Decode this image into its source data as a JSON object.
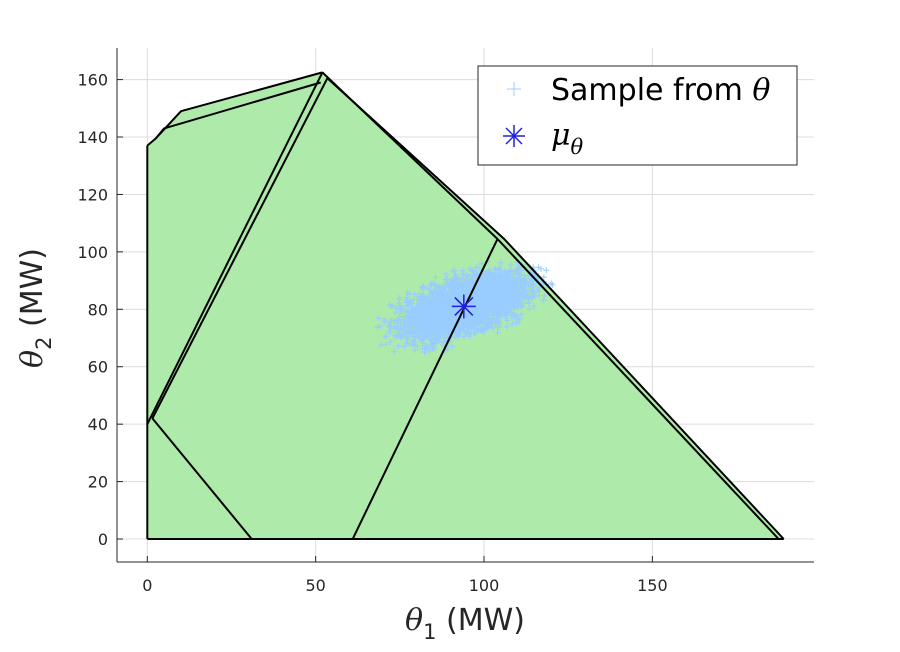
{
  "chart_data": {
    "type": "scatter",
    "xlabel": {
      "symbol": "θ",
      "sub": "1",
      "unit": " (MW)"
    },
    "ylabel": {
      "symbol": "θ",
      "sub": "2",
      "unit": " (MW)"
    },
    "xlim": [
      -9,
      198
    ],
    "ylim": [
      -8,
      171
    ],
    "xticks": [
      0,
      50,
      100,
      150
    ],
    "yticks": [
      0,
      20,
      40,
      60,
      80,
      100,
      120,
      140,
      160
    ],
    "grid": true,
    "colors": {
      "region_fill": "#aeeaa9",
      "region_edge": "#000000",
      "sample": "#99ccff",
      "mean": "#1f1fe0",
      "grid": "#dcdcdc",
      "axis": "#262626"
    },
    "regions": [
      [
        [
          0,
          0
        ],
        [
          0,
          137
        ],
        [
          2.5,
          139.5
        ],
        [
          5,
          143
        ],
        [
          10,
          149
        ],
        [
          52,
          162.5
        ],
        [
          53.5,
          160.5
        ],
        [
          106,
          104.5
        ],
        [
          189,
          0
        ]
      ],
      [
        [
          0,
          40
        ],
        [
          52,
          162.5
        ],
        [
          53.5,
          160.5
        ],
        [
          51.5,
          159
        ],
        [
          3.5,
          42
        ]
      ],
      [
        [
          0,
          137
        ],
        [
          2.5,
          139.5
        ],
        [
          5,
          143
        ],
        [
          51.5,
          159
        ],
        [
          52,
          162.5
        ],
        [
          10,
          149
        ]
      ],
      [
        [
          0,
          0
        ],
        [
          31,
          0
        ],
        [
          1.5,
          42
        ],
        [
          0,
          40
        ]
      ],
      [
        [
          61,
          0
        ],
        [
          104,
          104.5
        ],
        [
          106,
          104.5
        ],
        [
          187.5,
          0
        ]
      ]
    ],
    "edges": [
      [
        [
          0,
          0
        ],
        [
          0,
          137
        ]
      ],
      [
        [
          0,
          137
        ],
        [
          2.5,
          139.5
        ],
        [
          10,
          149
        ],
        [
          52,
          162.5
        ]
      ],
      [
        [
          2.5,
          139.5
        ],
        [
          5,
          143
        ],
        [
          51.5,
          159
        ]
      ],
      [
        [
          0,
          40
        ],
        [
          52,
          162.5
        ]
      ],
      [
        [
          1.5,
          42
        ],
        [
          53.5,
          160.5
        ]
      ],
      [
        [
          52,
          162.5
        ],
        [
          104,
          104.5
        ],
        [
          187.5,
          0
        ]
      ],
      [
        [
          53.5,
          160.5
        ],
        [
          106,
          104.5
        ],
        [
          189,
          0
        ]
      ],
      [
        [
          0,
          0
        ],
        [
          189,
          0
        ]
      ],
      [
        [
          1.5,
          42
        ],
        [
          31,
          0
        ]
      ],
      [
        [
          61,
          0
        ],
        [
          104,
          104.5
        ]
      ]
    ],
    "samples": {
      "center": [
        94,
        81
      ],
      "std": [
        9,
        5.5
      ],
      "correlation": 0.55,
      "count": 3500
    },
    "mean": {
      "x": 94,
      "y": 81
    },
    "legend": {
      "position": "top-right",
      "entries": [
        {
          "marker": "plus",
          "label_text": "Sample from ",
          "label_symbol": "θ",
          "label_sub": ""
        },
        {
          "marker": "asterisk",
          "label_text": "",
          "label_symbol": "μ",
          "label_sub": "θ"
        }
      ]
    }
  }
}
